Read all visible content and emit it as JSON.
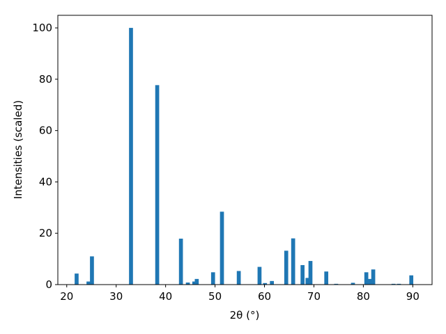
{
  "chart_data": {
    "type": "bar",
    "xlabel": "2θ (°)",
    "ylabel": "Intensities (scaled)",
    "x": [
      22.0,
      24.4,
      25.1,
      33.0,
      38.3,
      43.1,
      44.5,
      45.8,
      46.3,
      49.6,
      51.4,
      54.8,
      59.0,
      60.1,
      61.5,
      64.4,
      65.8,
      67.7,
      68.7,
      69.3,
      72.5,
      74.5,
      77.9,
      80.6,
      81.4,
      82.0,
      86.1,
      87.2,
      89.7
    ],
    "values": [
      4.3,
      1.2,
      11.0,
      100,
      77.7,
      17.9,
      0.8,
      1.2,
      2.2,
      4.8,
      28.4,
      5.3,
      6.9,
      0.6,
      1.4,
      13.2,
      18.0,
      7.6,
      2.6,
      9.2,
      5.1,
      0.3,
      0.7,
      4.8,
      2.2,
      5.9,
      0.3,
      0.3,
      3.6
    ],
    "color": "#1f77b4",
    "xlim": [
      18.2,
      93.9
    ],
    "xticks": [
      20,
      30,
      40,
      50,
      60,
      70,
      80,
      90
    ],
    "ylim": [
      0,
      104.9
    ],
    "yticks": [
      0,
      20,
      40,
      60,
      80,
      100
    ],
    "grid": false
  }
}
